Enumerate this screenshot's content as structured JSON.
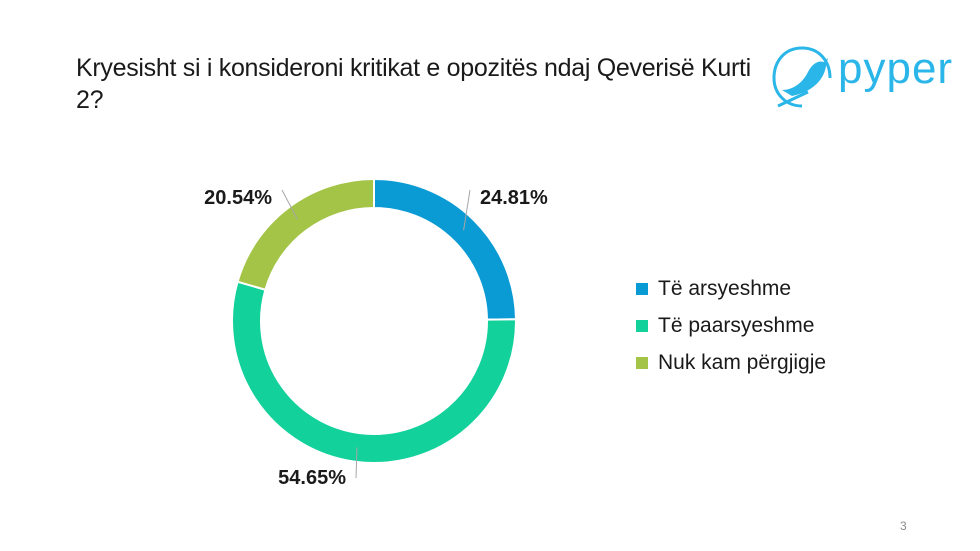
{
  "title": "Kryesisht si i konsideroni kritikat e opozitës ndaj Qeverisë Kurti 2?",
  "logo": {
    "text": "pyper",
    "icon": "bird-icon",
    "color": "#2ab6e8"
  },
  "page_number": "3",
  "chart_data": {
    "type": "pie",
    "style": "donut",
    "title": "Kryesisht si i konsideroni kritikat e opozitës ndaj Qeverisë Kurti 2?",
    "categories": [
      "Të arsyeshme",
      "Të paarsyeshme",
      "Nuk kam përgjigje"
    ],
    "values": [
      24.81,
      54.65,
      20.54
    ],
    "labels": [
      "24.81%",
      "54.65%",
      "20.54%"
    ],
    "colors": [
      "#0a9bd5",
      "#13d19b",
      "#a3c447"
    ],
    "legend_position": "right"
  }
}
